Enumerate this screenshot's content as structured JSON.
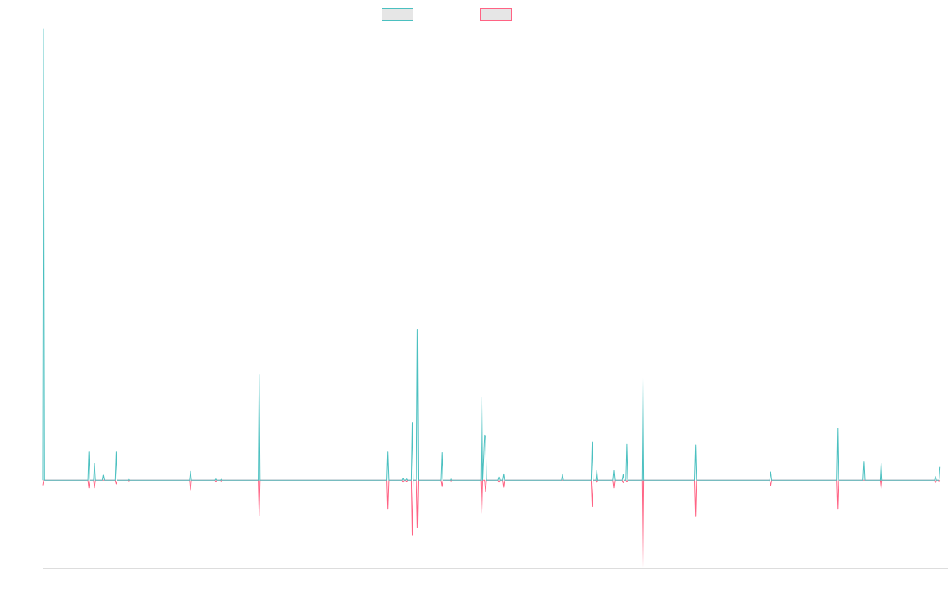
{
  "chart_data": {
    "type": "line",
    "title": "",
    "xlabel": "",
    "ylabel": "",
    "x_range": [
      0,
      1000
    ],
    "ylim": [
      -140,
      720
    ],
    "grid": false,
    "legend_position": "top-center",
    "series": [
      {
        "color": "#4bc0c0",
        "fill": "#e6e6e6",
        "points": [
          [
            0,
            0
          ],
          [
            1,
            720
          ],
          [
            2,
            0
          ],
          [
            50,
            0
          ],
          [
            51,
            45
          ],
          [
            52,
            0
          ],
          [
            56,
            0
          ],
          [
            57,
            27
          ],
          [
            58,
            0
          ],
          [
            66,
            0
          ],
          [
            67,
            8
          ],
          [
            68,
            0
          ],
          [
            80,
            0
          ],
          [
            81,
            45
          ],
          [
            82,
            0
          ],
          [
            94,
            0
          ],
          [
            95,
            2
          ],
          [
            96,
            0
          ],
          [
            162,
            0
          ],
          [
            163,
            14
          ],
          [
            164,
            0
          ],
          [
            190,
            0
          ],
          [
            191,
            2
          ],
          [
            192,
            0
          ],
          [
            196,
            0
          ],
          [
            197,
            2
          ],
          [
            198,
            0
          ],
          [
            238,
            0
          ],
          [
            239,
            168
          ],
          [
            240,
            0
          ],
          [
            380,
            0
          ],
          [
            381,
            45
          ],
          [
            382,
            0
          ],
          [
            397,
            0
          ],
          [
            398,
            3
          ],
          [
            399,
            0
          ],
          [
            401,
            0
          ],
          [
            402,
            2
          ],
          [
            403,
            0
          ],
          [
            407,
            0
          ],
          [
            408,
            92
          ],
          [
            409,
            0
          ],
          [
            413,
            0
          ],
          [
            414,
            240
          ],
          [
            415,
            0
          ],
          [
            440,
            0
          ],
          [
            441,
            44
          ],
          [
            442,
            0
          ],
          [
            450,
            0
          ],
          [
            451,
            3
          ],
          [
            452,
            0
          ],
          [
            484,
            0
          ],
          [
            485,
            133
          ],
          [
            486,
            0
          ],
          [
            488,
            72
          ],
          [
            489,
            70
          ],
          [
            490,
            0
          ],
          [
            503,
            0
          ],
          [
            504,
            5
          ],
          [
            505,
            0
          ],
          [
            508,
            0
          ],
          [
            509,
            10
          ],
          [
            510,
            0
          ],
          [
            573,
            0
          ],
          [
            574,
            10
          ],
          [
            575,
            0
          ],
          [
            606,
            0
          ],
          [
            607,
            61
          ],
          [
            608,
            0
          ],
          [
            611,
            0
          ],
          [
            612,
            16
          ],
          [
            613,
            0
          ],
          [
            630,
            0
          ],
          [
            631,
            15
          ],
          [
            632,
            0
          ],
          [
            640,
            0
          ],
          [
            641,
            9
          ],
          [
            642,
            0
          ],
          [
            644,
            0
          ],
          [
            645,
            57
          ],
          [
            646,
            0
          ],
          [
            662,
            0
          ],
          [
            663,
            163
          ],
          [
            664,
            0
          ],
          [
            720,
            0
          ],
          [
            721,
            56
          ],
          [
            722,
            0
          ],
          [
            803,
            0
          ],
          [
            804,
            13
          ],
          [
            805,
            0
          ],
          [
            877,
            0
          ],
          [
            878,
            83
          ],
          [
            879,
            0
          ],
          [
            906,
            0
          ],
          [
            907,
            30
          ],
          [
            908,
            0
          ],
          [
            925,
            0
          ],
          [
            926,
            28
          ],
          [
            927,
            0
          ],
          [
            985,
            0
          ],
          [
            986,
            6
          ],
          [
            987,
            0
          ],
          [
            989,
            0
          ],
          [
            990,
            0
          ],
          [
            991,
            21
          ]
        ]
      },
      {
        "color": "#ff6384",
        "fill": "#e6e6e6",
        "points": [
          [
            0,
            -8
          ],
          [
            1,
            0
          ],
          [
            50,
            0
          ],
          [
            51,
            -12
          ],
          [
            52,
            0
          ],
          [
            56,
            0
          ],
          [
            57,
            -12
          ],
          [
            58,
            0
          ],
          [
            80,
            0
          ],
          [
            81,
            -6
          ],
          [
            82,
            0
          ],
          [
            94,
            0
          ],
          [
            95,
            -2
          ],
          [
            96,
            0
          ],
          [
            162,
            0
          ],
          [
            163,
            -16
          ],
          [
            164,
            0
          ],
          [
            190,
            0
          ],
          [
            191,
            -2
          ],
          [
            192,
            0
          ],
          [
            196,
            0
          ],
          [
            197,
            -2
          ],
          [
            198,
            0
          ],
          [
            238,
            0
          ],
          [
            239,
            -57
          ],
          [
            240,
            0
          ],
          [
            380,
            0
          ],
          [
            381,
            -46
          ],
          [
            382,
            0
          ],
          [
            397,
            0
          ],
          [
            398,
            -3
          ],
          [
            399,
            0
          ],
          [
            401,
            0
          ],
          [
            402,
            -2
          ],
          [
            403,
            0
          ],
          [
            407,
            0
          ],
          [
            408,
            -87
          ],
          [
            409,
            0
          ],
          [
            413,
            0
          ],
          [
            414,
            -76
          ],
          [
            415,
            0
          ],
          [
            440,
            0
          ],
          [
            441,
            -10
          ],
          [
            442,
            0
          ],
          [
            450,
            0
          ],
          [
            451,
            -2
          ],
          [
            452,
            0
          ],
          [
            484,
            0
          ],
          [
            485,
            -53
          ],
          [
            486,
            0
          ],
          [
            488,
            0
          ],
          [
            489,
            -18
          ],
          [
            490,
            0
          ],
          [
            503,
            0
          ],
          [
            504,
            -3
          ],
          [
            505,
            0
          ],
          [
            508,
            0
          ],
          [
            509,
            -11
          ],
          [
            510,
            0
          ],
          [
            606,
            0
          ],
          [
            607,
            -42
          ],
          [
            608,
            0
          ],
          [
            611,
            0
          ],
          [
            612,
            -4
          ],
          [
            613,
            0
          ],
          [
            630,
            0
          ],
          [
            631,
            -12
          ],
          [
            632,
            0
          ],
          [
            640,
            0
          ],
          [
            641,
            -4
          ],
          [
            642,
            0
          ],
          [
            644,
            0
          ],
          [
            645,
            -2
          ],
          [
            646,
            0
          ],
          [
            662,
            0
          ],
          [
            663,
            -140
          ],
          [
            664,
            0
          ],
          [
            720,
            0
          ],
          [
            721,
            -58
          ],
          [
            722,
            0
          ],
          [
            803,
            0
          ],
          [
            804,
            -9
          ],
          [
            805,
            0
          ],
          [
            877,
            0
          ],
          [
            878,
            -46
          ],
          [
            879,
            0
          ],
          [
            925,
            0
          ],
          [
            926,
            -13
          ],
          [
            927,
            0
          ],
          [
            985,
            0
          ],
          [
            986,
            -4
          ],
          [
            987,
            0
          ],
          [
            989,
            0
          ],
          [
            990,
            -2
          ],
          [
            991,
            0
          ]
        ]
      }
    ]
  }
}
